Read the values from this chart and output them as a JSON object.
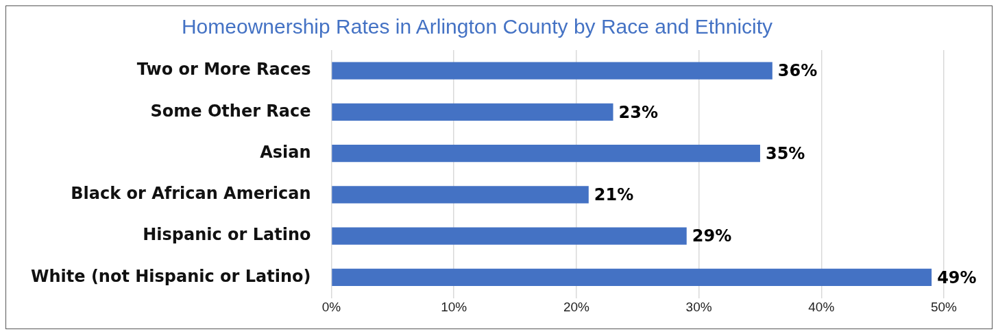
{
  "chart_data": {
    "type": "bar",
    "orientation": "horizontal",
    "title": "Homeownership Rates in Arlington County by Race and Ethnicity",
    "categories": [
      "Two or More Races",
      "Some Other Race",
      "Asian",
      "Black or African American",
      "Hispanic or Latino",
      "White (not Hispanic or Latino)"
    ],
    "values": [
      36,
      23,
      35,
      21,
      29,
      49
    ],
    "value_labels": [
      "36%",
      "23%",
      "35%",
      "21%",
      "29%",
      "49%"
    ],
    "color": "#4472c4",
    "xlim": [
      0,
      50
    ],
    "xticks": [
      {
        "value": 0,
        "label": "0%"
      },
      {
        "value": 10,
        "label": "10%"
      },
      {
        "value": 20,
        "label": "20%"
      },
      {
        "value": 30,
        "label": "30%"
      },
      {
        "value": 40,
        "label": "40%"
      },
      {
        "value": 50,
        "label": "50%"
      }
    ],
    "grid": "x",
    "legend": false
  }
}
